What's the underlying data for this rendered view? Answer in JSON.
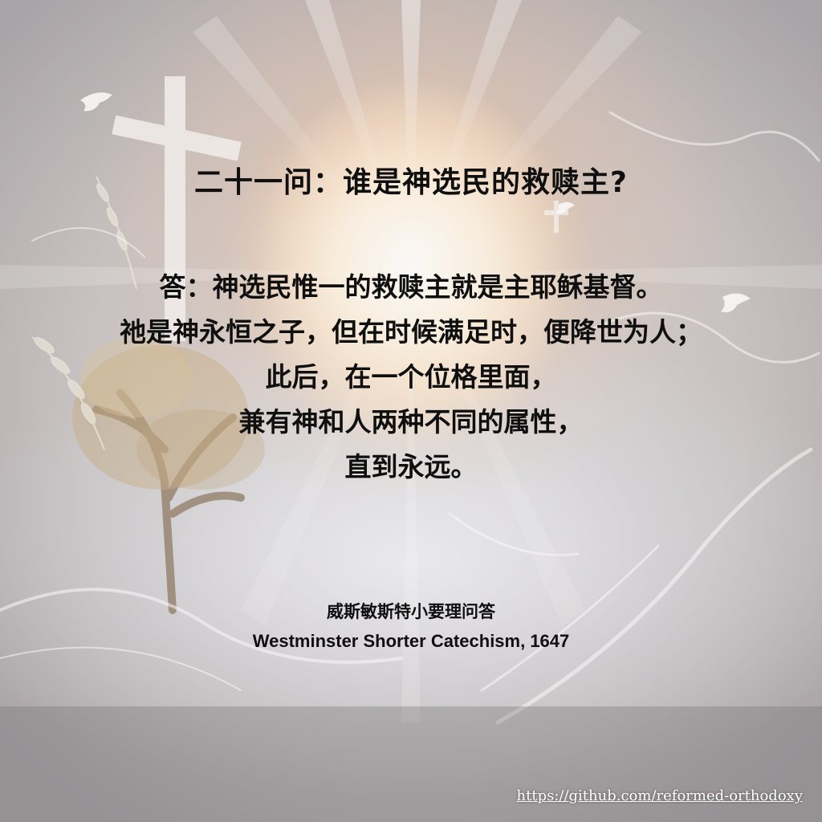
{
  "question": "二十一问：谁是神选民的救赎主?",
  "answer_lines": [
    "答：神选民惟一的救赎主就是主耶稣基督。",
    "祂是神永恒之子，但在时候满足时，便降世为人；",
    "此后，在一个位格里面，",
    "兼有神和人两种不同的属性，",
    "直到永远。"
  ],
  "source": {
    "chinese": "威斯敏斯特小要理问答",
    "english": "Westminster Shorter Catechism, 1647"
  },
  "link": {
    "text": "https://github.com/reformed-orthodoxy"
  },
  "colors": {
    "text": "#0f0f10",
    "link": "#ffffff",
    "glow": "#ffb070"
  },
  "icons": [
    "cross-icon",
    "dove-icon",
    "tree-icon"
  ]
}
